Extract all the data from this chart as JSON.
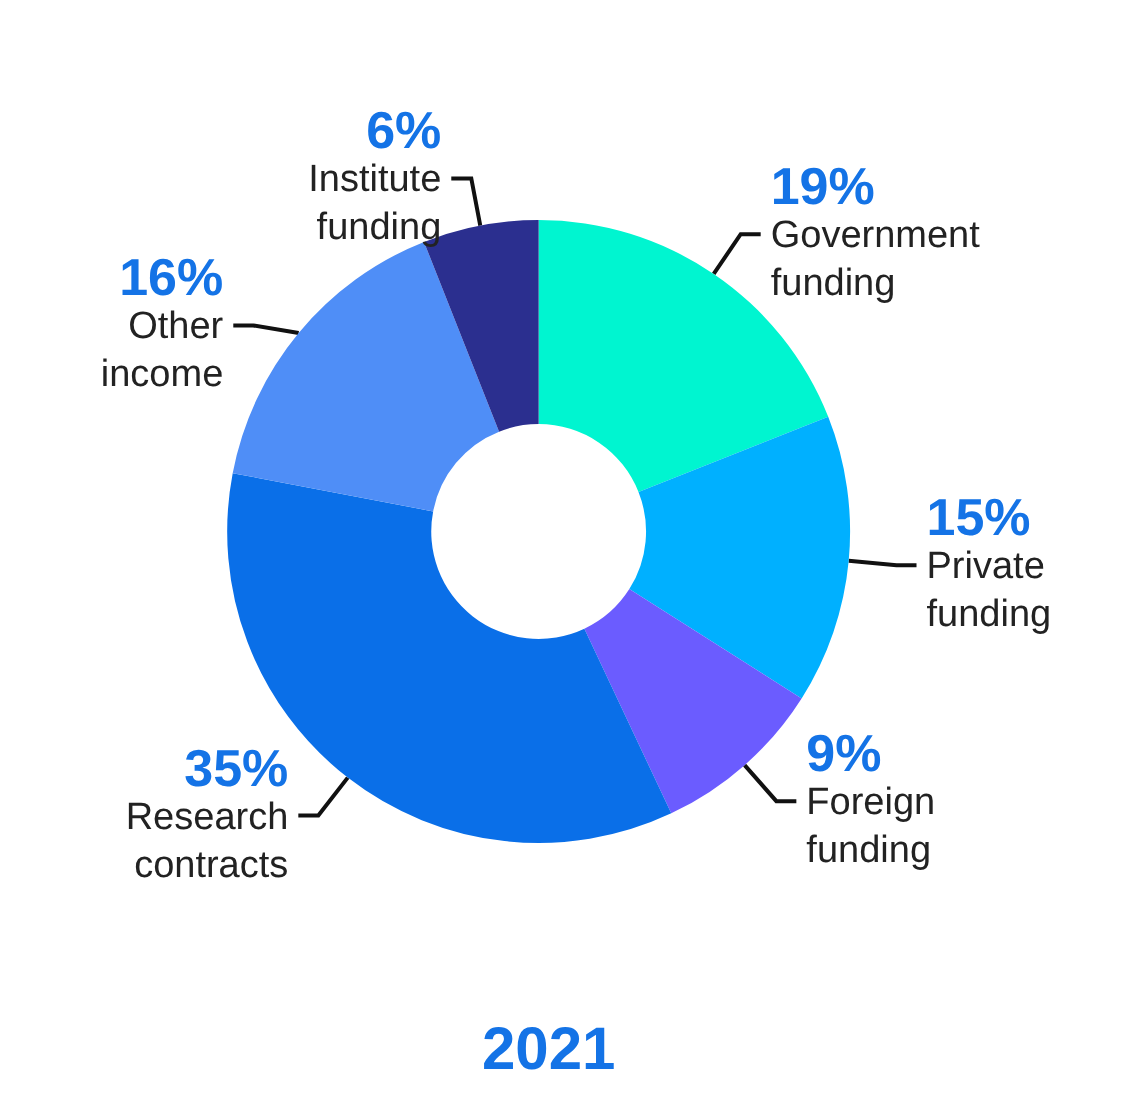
{
  "chart_data": {
    "type": "donut",
    "title": "2021",
    "categories": [
      "Government funding",
      "Private funding",
      "Foreign funding",
      "Research contracts",
      "Other income",
      "Institute funding"
    ],
    "values": [
      19,
      15,
      9,
      35,
      16,
      6
    ],
    "colors": [
      "#00f5d0",
      "#00b0ff",
      "#6b5cff",
      "#0a6fe8",
      "#4f8ef7",
      "#2b2f8f"
    ],
    "value_labels": [
      "19%",
      "15%",
      "9%",
      "35%",
      "16%",
      "6%"
    ],
    "legend": false
  }
}
